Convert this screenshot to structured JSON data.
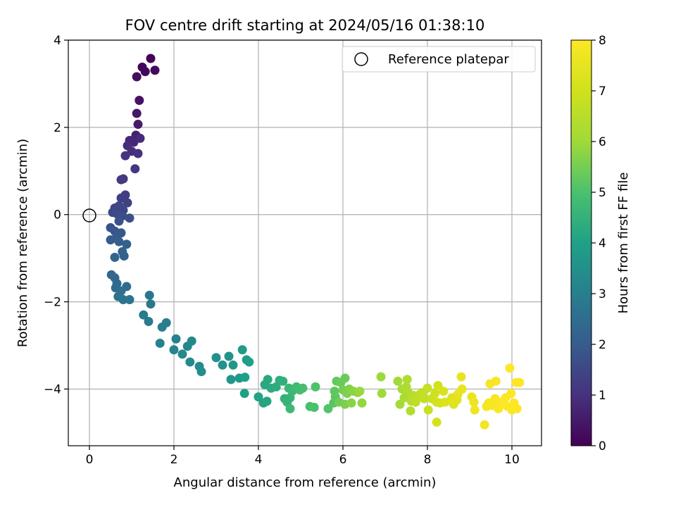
{
  "chart_data": {
    "type": "scatter",
    "title": "FOV centre drift starting at 2024/05/16 01:38:10",
    "xlabel": "Angular distance from reference (arcmin)",
    "ylabel": "Rotation from reference (arcmin)",
    "xlim": [
      -0.5,
      10.7
    ],
    "ylim": [
      -5.3,
      4.0
    ],
    "xticks": [
      0,
      2,
      4,
      6,
      8,
      10
    ],
    "yticks": [
      -4,
      -2,
      0,
      2,
      4
    ],
    "grid": true,
    "legend": {
      "position": "top-right",
      "entries": [
        "Reference platepar"
      ]
    },
    "reference_point": {
      "x": 0,
      "y": 0,
      "label": "Reference platepar"
    },
    "colorbar": {
      "label": "Hours from first FF file",
      "colormap": "viridis",
      "range": [
        0,
        8
      ],
      "ticks": [
        0,
        1,
        2,
        3,
        4,
        5,
        6,
        7,
        8
      ]
    },
    "series": [
      {
        "color_by": "hours",
        "points": [
          [
            1.45,
            3.58,
            0.05
          ],
          [
            1.25,
            3.38,
            0.1
          ],
          [
            1.32,
            3.28,
            0.15
          ],
          [
            1.55,
            3.31,
            0.2
          ],
          [
            1.12,
            3.16,
            0.25
          ],
          [
            1.18,
            2.62,
            0.35
          ],
          [
            1.12,
            2.32,
            0.45
          ],
          [
            1.15,
            2.07,
            0.55
          ],
          [
            1.1,
            1.82,
            0.65
          ],
          [
            0.95,
            1.7,
            0.75
          ],
          [
            1.05,
            1.66,
            0.8
          ],
          [
            1.2,
            1.75,
            0.85
          ],
          [
            0.9,
            1.58,
            0.9
          ],
          [
            1.0,
            1.45,
            0.95
          ],
          [
            1.15,
            1.4,
            1.0
          ],
          [
            0.85,
            1.35,
            1.05
          ],
          [
            1.08,
            1.05,
            1.1
          ],
          [
            0.8,
            0.82,
            1.15
          ],
          [
            0.75,
            0.8,
            1.2
          ],
          [
            0.85,
            0.45,
            1.25
          ],
          [
            0.75,
            0.38,
            1.3
          ],
          [
            0.9,
            0.27,
            1.35
          ],
          [
            0.6,
            0.15,
            1.4
          ],
          [
            0.7,
            0.2,
            1.45
          ],
          [
            0.8,
            0.1,
            1.5
          ],
          [
            0.55,
            0.05,
            1.55
          ],
          [
            0.65,
            0.02,
            1.6
          ],
          [
            0.78,
            -0.03,
            1.65
          ],
          [
            0.95,
            -0.08,
            1.7
          ],
          [
            0.7,
            -0.15,
            1.75
          ],
          [
            0.5,
            -0.3,
            1.8
          ],
          [
            0.6,
            -0.38,
            1.85
          ],
          [
            0.75,
            -0.42,
            1.9
          ],
          [
            0.65,
            -0.5,
            1.95
          ],
          [
            0.5,
            -0.58,
            2.0
          ],
          [
            0.7,
            -0.62,
            2.05
          ],
          [
            0.88,
            -0.68,
            2.1
          ],
          [
            0.78,
            -0.85,
            2.15
          ],
          [
            0.82,
            -0.95,
            2.2
          ],
          [
            0.6,
            -0.98,
            2.25
          ],
          [
            0.52,
            -1.38,
            2.3
          ],
          [
            0.6,
            -1.45,
            2.35
          ],
          [
            0.65,
            -1.58,
            2.4
          ],
          [
            0.62,
            -1.68,
            2.45
          ],
          [
            0.88,
            -1.65,
            2.5
          ],
          [
            0.75,
            -1.75,
            2.55
          ],
          [
            0.68,
            -1.88,
            2.6
          ],
          [
            0.8,
            -1.95,
            2.65
          ],
          [
            0.95,
            -1.95,
            2.7
          ],
          [
            1.42,
            -1.85,
            2.75
          ],
          [
            1.45,
            -2.05,
            2.8
          ],
          [
            1.28,
            -2.3,
            2.85
          ],
          [
            1.4,
            -2.45,
            2.9
          ],
          [
            1.82,
            -2.48,
            2.95
          ],
          [
            1.72,
            -2.58,
            3.0
          ],
          [
            1.67,
            -2.95,
            3.05
          ],
          [
            2.05,
            -2.85,
            3.1
          ],
          [
            2.0,
            -3.1,
            3.15
          ],
          [
            2.32,
            -3.02,
            3.2
          ],
          [
            2.42,
            -2.9,
            3.25
          ],
          [
            2.2,
            -3.2,
            3.3
          ],
          [
            2.38,
            -3.38,
            3.35
          ],
          [
            2.6,
            -3.48,
            3.4
          ],
          [
            2.65,
            -3.6,
            3.45
          ],
          [
            3.0,
            -3.28,
            3.5
          ],
          [
            3.15,
            -3.45,
            3.55
          ],
          [
            3.3,
            -3.25,
            3.6
          ],
          [
            3.4,
            -3.45,
            3.65
          ],
          [
            3.35,
            -3.78,
            3.7
          ],
          [
            3.55,
            -3.75,
            3.75
          ],
          [
            3.62,
            -3.1,
            3.8
          ],
          [
            3.72,
            -3.33,
            3.85
          ],
          [
            3.78,
            -3.38,
            3.9
          ],
          [
            3.68,
            -3.73,
            3.95
          ],
          [
            3.67,
            -4.1,
            4.0
          ],
          [
            4.0,
            -4.18,
            4.05
          ],
          [
            4.12,
            -4.32,
            4.1
          ],
          [
            4.2,
            -4.28,
            4.15
          ],
          [
            4.15,
            -3.9,
            4.2
          ],
          [
            4.22,
            -3.78,
            4.25
          ],
          [
            4.3,
            -3.98,
            4.3
          ],
          [
            4.42,
            -3.95,
            4.35
          ],
          [
            4.5,
            -3.8,
            4.4
          ],
          [
            4.58,
            -3.82,
            4.45
          ],
          [
            4.62,
            -4.22,
            4.5
          ],
          [
            4.68,
            -4.3,
            4.55
          ],
          [
            4.75,
            -4.2,
            4.6
          ],
          [
            4.72,
            -3.98,
            4.65
          ],
          [
            4.8,
            -4.05,
            4.7
          ],
          [
            4.75,
            -4.45,
            4.75
          ],
          [
            4.9,
            -3.95,
            4.8
          ],
          [
            4.98,
            -4.02,
            4.85
          ],
          [
            5.05,
            -3.98,
            4.9
          ],
          [
            5.22,
            -4.4,
            4.95
          ],
          [
            5.32,
            -4.42,
            5.0
          ],
          [
            5.35,
            -3.95,
            5.05
          ],
          [
            5.65,
            -4.45,
            5.1
          ],
          [
            5.78,
            -4.32,
            5.15
          ],
          [
            5.82,
            -4.18,
            5.2
          ],
          [
            5.8,
            -4.05,
            5.25
          ],
          [
            5.85,
            -3.82,
            5.3
          ],
          [
            5.95,
            -3.85,
            5.35
          ],
          [
            6.05,
            -3.75,
            5.4
          ],
          [
            5.9,
            -4.3,
            5.45
          ],
          [
            6.0,
            -4.02,
            5.5
          ],
          [
            6.05,
            -4.35,
            5.55
          ],
          [
            6.1,
            -4.1,
            5.6
          ],
          [
            6.15,
            -4.0,
            5.65
          ],
          [
            6.2,
            -4.32,
            5.7
          ],
          [
            6.25,
            -4.05,
            5.75
          ],
          [
            6.35,
            -4.08,
            5.8
          ],
          [
            6.45,
            -4.32,
            5.85
          ],
          [
            6.4,
            -4.05,
            5.9
          ],
          [
            6.9,
            -3.72,
            5.95
          ],
          [
            6.92,
            -4.1,
            6.0
          ],
          [
            7.3,
            -3.82,
            6.05
          ],
          [
            7.35,
            -4.35,
            6.1
          ],
          [
            7.4,
            -4.0,
            6.15
          ],
          [
            7.45,
            -4.2,
            6.2
          ],
          [
            7.5,
            -3.95,
            6.25
          ],
          [
            7.52,
            -3.78,
            6.3
          ],
          [
            7.55,
            -4.08,
            6.35
          ],
          [
            7.6,
            -4.5,
            6.4
          ],
          [
            7.62,
            -4.28,
            6.45
          ],
          [
            7.68,
            -4.15,
            6.5
          ],
          [
            7.72,
            -4.3,
            6.55
          ],
          [
            7.78,
            -4.18,
            6.6
          ],
          [
            7.82,
            -4.12,
            6.65
          ],
          [
            7.88,
            -4.08,
            6.7
          ],
          [
            7.92,
            -4.22,
            6.75
          ],
          [
            8.0,
            -3.98,
            6.8
          ],
          [
            8.02,
            -4.48,
            6.85
          ],
          [
            8.1,
            -4.22,
            6.9
          ],
          [
            8.18,
            -4.1,
            6.95
          ],
          [
            8.22,
            -4.3,
            7.0
          ],
          [
            8.25,
            -3.92,
            7.05
          ],
          [
            8.22,
            -4.76,
            7.1
          ],
          [
            8.3,
            -4.32,
            7.15
          ],
          [
            8.38,
            -4.05,
            7.2
          ],
          [
            8.42,
            -4.3,
            7.25
          ],
          [
            8.58,
            -4.2,
            7.3
          ],
          [
            8.62,
            -4.35,
            7.35
          ],
          [
            8.7,
            -4.25,
            7.4
          ],
          [
            8.72,
            -4.12,
            7.45
          ],
          [
            8.8,
            -3.72,
            7.5
          ],
          [
            8.82,
            -4.0,
            7.55
          ],
          [
            9.05,
            -4.18,
            7.6
          ],
          [
            9.1,
            -4.3,
            7.65
          ],
          [
            9.12,
            -4.48,
            7.7
          ],
          [
            9.35,
            -4.82,
            7.75
          ],
          [
            9.4,
            -4.4,
            7.8
          ],
          [
            9.45,
            -4.32,
            7.82
          ],
          [
            9.48,
            -3.88,
            7.84
          ],
          [
            9.55,
            -4.38,
            7.86
          ],
          [
            9.6,
            -4.22,
            7.88
          ],
          [
            9.62,
            -3.82,
            7.9
          ],
          [
            9.68,
            -4.45,
            7.92
          ],
          [
            9.72,
            -4.3,
            7.94
          ],
          [
            9.78,
            -4.35,
            7.95
          ],
          [
            9.85,
            -4.2,
            7.96
          ],
          [
            9.9,
            -4.4,
            7.97
          ],
          [
            9.95,
            -3.52,
            7.98
          ],
          [
            10.0,
            -4.48,
            7.98
          ],
          [
            9.98,
            -4.1,
            7.99
          ],
          [
            10.05,
            -4.32,
            7.99
          ],
          [
            10.1,
            -3.85,
            8.0
          ],
          [
            10.18,
            -3.85,
            8.0
          ],
          [
            10.12,
            -4.45,
            8.0
          ]
        ]
      }
    ]
  }
}
